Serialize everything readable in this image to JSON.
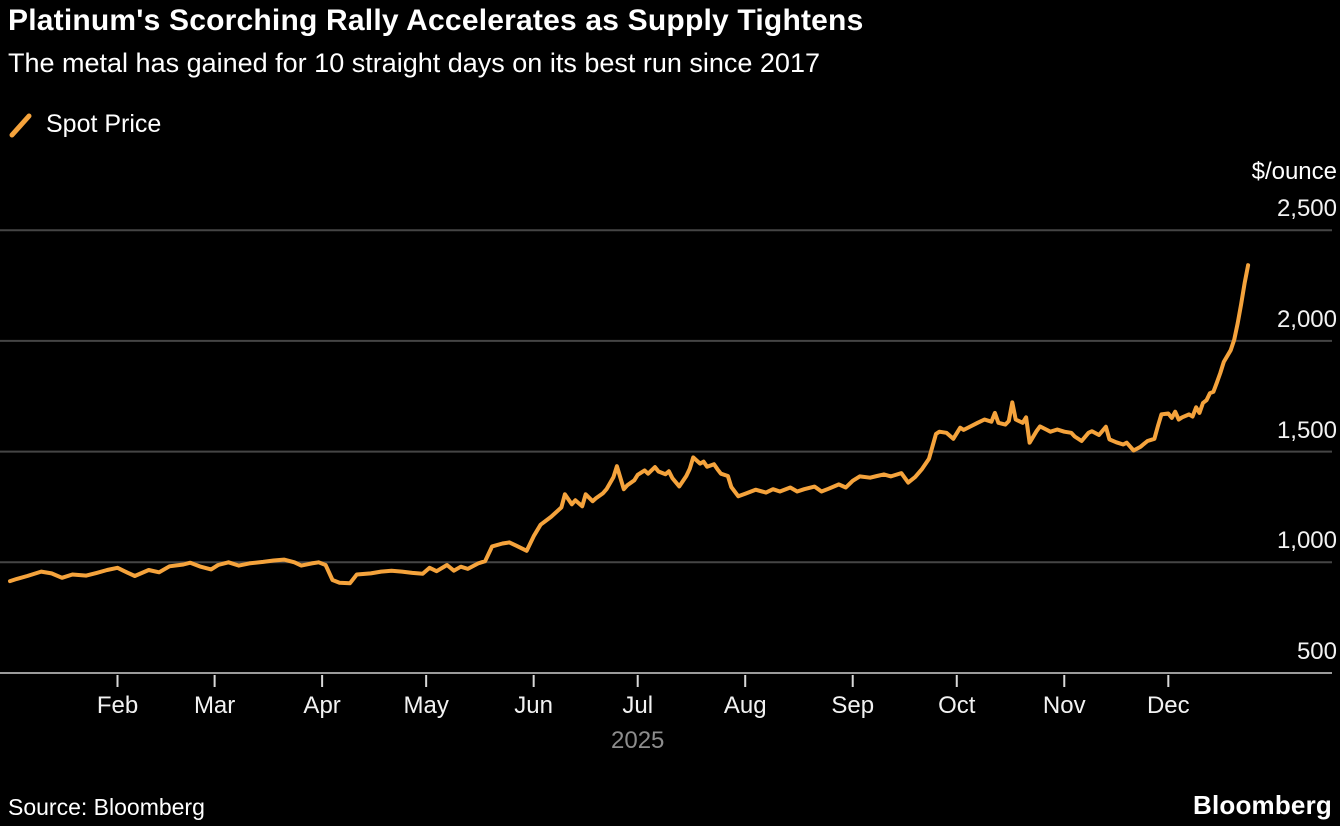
{
  "header": {
    "title": "Platinum's Scorching Rally Accelerates as Supply Tightens",
    "subtitle": "The metal has gained for 10 straight days on its best run since 2017"
  },
  "legend": {
    "label": "Spot Price"
  },
  "footer": {
    "source": "Source: Bloomberg",
    "logo": "Bloomberg"
  },
  "chart_data": {
    "type": "line",
    "title": "Platinum's Scorching Rally Accelerates as Supply Tightens",
    "unit_label": "$/ounce",
    "year_label": "2025",
    "x_unit": "days since Jan 1, 2025",
    "legend_position": "top-left",
    "grid": "horizontal-only",
    "ylim": [
      500,
      2680
    ],
    "baseline_value": 500,
    "yticks": [
      {
        "label": "500",
        "value": 500
      },
      {
        "label": "1,000",
        "value": 1000
      },
      {
        "label": "1,500",
        "value": 1500
      },
      {
        "label": "2,000",
        "value": 2000
      },
      {
        "label": "2,500",
        "value": 2500
      }
    ],
    "xticks": [
      {
        "label": "Feb",
        "day": 31
      },
      {
        "label": "Mar",
        "day": 59
      },
      {
        "label": "Apr",
        "day": 90
      },
      {
        "label": "May",
        "day": 120
      },
      {
        "label": "Jun",
        "day": 151
      },
      {
        "label": "Jul",
        "day": 181
      },
      {
        "label": "Aug",
        "day": 212
      },
      {
        "label": "Sep",
        "day": 243
      },
      {
        "label": "Oct",
        "day": 273
      },
      {
        "label": "Nov",
        "day": 304
      },
      {
        "label": "Dec",
        "day": 334
      }
    ],
    "year_label_day": 181,
    "colors": {
      "line": "#F5A33C",
      "grid": "#454545",
      "axis": "#9B9B9B",
      "tick": "#D9D9D9",
      "year": "#8D8D8D"
    },
    "series": [
      {
        "name": "Spot Price",
        "points": [
          [
            0,
            915
          ],
          [
            2,
            925
          ],
          [
            5,
            938
          ],
          [
            9,
            958
          ],
          [
            12,
            950
          ],
          [
            15,
            930
          ],
          [
            18,
            945
          ],
          [
            22,
            940
          ],
          [
            25,
            952
          ],
          [
            28,
            965
          ],
          [
            31,
            975
          ],
          [
            33,
            960
          ],
          [
            36,
            938
          ],
          [
            40,
            965
          ],
          [
            43,
            955
          ],
          [
            46,
            982
          ],
          [
            50,
            990
          ],
          [
            52,
            998
          ],
          [
            55,
            980
          ],
          [
            58,
            968
          ],
          [
            60,
            988
          ],
          [
            63,
            1000
          ],
          [
            66,
            985
          ],
          [
            69,
            995
          ],
          [
            73,
            1002
          ],
          [
            76,
            1008
          ],
          [
            79,
            1012
          ],
          [
            82,
            1000
          ],
          [
            84,
            985
          ],
          [
            87,
            995
          ],
          [
            89,
            1000
          ],
          [
            91,
            988
          ],
          [
            93,
            920
          ],
          [
            95,
            908
          ],
          [
            98,
            905
          ],
          [
            100,
            945
          ],
          [
            104,
            950
          ],
          [
            107,
            958
          ],
          [
            110,
            962
          ],
          [
            113,
            958
          ],
          [
            116,
            952
          ],
          [
            119,
            948
          ],
          [
            121,
            975
          ],
          [
            123,
            960
          ],
          [
            126,
            988
          ],
          [
            128,
            962
          ],
          [
            130,
            980
          ],
          [
            132,
            970
          ],
          [
            135,
            995
          ],
          [
            137,
            1005
          ],
          [
            139,
            1072
          ],
          [
            142,
            1085
          ],
          [
            144,
            1090
          ],
          [
            146,
            1075
          ],
          [
            149,
            1052
          ],
          [
            151,
            1118
          ],
          [
            153,
            1170
          ],
          [
            156,
            1205
          ],
          [
            159,
            1248
          ],
          [
            160,
            1307
          ],
          [
            162,
            1262
          ],
          [
            163,
            1280
          ],
          [
            165,
            1253
          ],
          [
            166,
            1307
          ],
          [
            168,
            1276
          ],
          [
            169,
            1290
          ],
          [
            171,
            1312
          ],
          [
            172,
            1330
          ],
          [
            174,
            1384
          ],
          [
            175,
            1434
          ],
          [
            177,
            1330
          ],
          [
            178,
            1348
          ],
          [
            180,
            1370
          ],
          [
            181,
            1395
          ],
          [
            183,
            1415
          ],
          [
            184,
            1400
          ],
          [
            186,
            1430
          ],
          [
            187,
            1410
          ],
          [
            189,
            1398
          ],
          [
            190,
            1411
          ],
          [
            191,
            1380
          ],
          [
            193,
            1343
          ],
          [
            195,
            1390
          ],
          [
            196,
            1422
          ],
          [
            197,
            1474
          ],
          [
            199,
            1446
          ],
          [
            200,
            1455
          ],
          [
            201,
            1432
          ],
          [
            203,
            1443
          ],
          [
            204,
            1420
          ],
          [
            205,
            1400
          ],
          [
            207,
            1390
          ],
          [
            208,
            1340
          ],
          [
            210,
            1298
          ],
          [
            212,
            1310
          ],
          [
            215,
            1328
          ],
          [
            218,
            1315
          ],
          [
            220,
            1330
          ],
          [
            222,
            1320
          ],
          [
            225,
            1338
          ],
          [
            227,
            1320
          ],
          [
            229,
            1330
          ],
          [
            232,
            1342
          ],
          [
            234,
            1320
          ],
          [
            236,
            1332
          ],
          [
            239,
            1352
          ],
          [
            241,
            1338
          ],
          [
            243,
            1368
          ],
          [
            245,
            1388
          ],
          [
            248,
            1382
          ],
          [
            250,
            1390
          ],
          [
            252,
            1397
          ],
          [
            254,
            1388
          ],
          [
            257,
            1403
          ],
          [
            259,
            1360
          ],
          [
            261,
            1385
          ],
          [
            263,
            1422
          ],
          [
            265,
            1468
          ],
          [
            267,
            1580
          ],
          [
            268,
            1590
          ],
          [
            270,
            1585
          ],
          [
            272,
            1558
          ],
          [
            274,
            1608
          ],
          [
            275,
            1598
          ],
          [
            277,
            1614
          ],
          [
            279,
            1630
          ],
          [
            281,
            1645
          ],
          [
            283,
            1635
          ],
          [
            284,
            1675
          ],
          [
            285,
            1630
          ],
          [
            287,
            1622
          ],
          [
            288,
            1638
          ],
          [
            289,
            1722
          ],
          [
            290,
            1645
          ],
          [
            292,
            1630
          ],
          [
            293,
            1655
          ],
          [
            294,
            1540
          ],
          [
            296,
            1592
          ],
          [
            297,
            1614
          ],
          [
            299,
            1598
          ],
          [
            300,
            1590
          ],
          [
            302,
            1600
          ],
          [
            304,
            1590
          ],
          [
            306,
            1585
          ],
          [
            307,
            1568
          ],
          [
            309,
            1548
          ],
          [
            311,
            1585
          ],
          [
            312,
            1592
          ],
          [
            314,
            1575
          ],
          [
            316,
            1612
          ],
          [
            317,
            1555
          ],
          [
            319,
            1542
          ],
          [
            321,
            1532
          ],
          [
            322,
            1540
          ],
          [
            324,
            1505
          ],
          [
            326,
            1522
          ],
          [
            328,
            1548
          ],
          [
            330,
            1558
          ],
          [
            331,
            1615
          ],
          [
            332,
            1668
          ],
          [
            334,
            1672
          ],
          [
            335,
            1652
          ],
          [
            336,
            1680
          ],
          [
            337,
            1645
          ],
          [
            338,
            1655
          ],
          [
            340,
            1668
          ],
          [
            341,
            1658
          ],
          [
            342,
            1700
          ],
          [
            343,
            1675
          ],
          [
            344,
            1720
          ],
          [
            345,
            1732
          ],
          [
            346,
            1764
          ],
          [
            347,
            1770
          ],
          [
            348,
            1812
          ],
          [
            349,
            1855
          ],
          [
            350,
            1905
          ],
          [
            352,
            1958
          ],
          [
            353,
            2005
          ],
          [
            354,
            2080
          ],
          [
            355,
            2165
          ],
          [
            356,
            2260
          ],
          [
            357,
            2342
          ]
        ]
      }
    ]
  }
}
